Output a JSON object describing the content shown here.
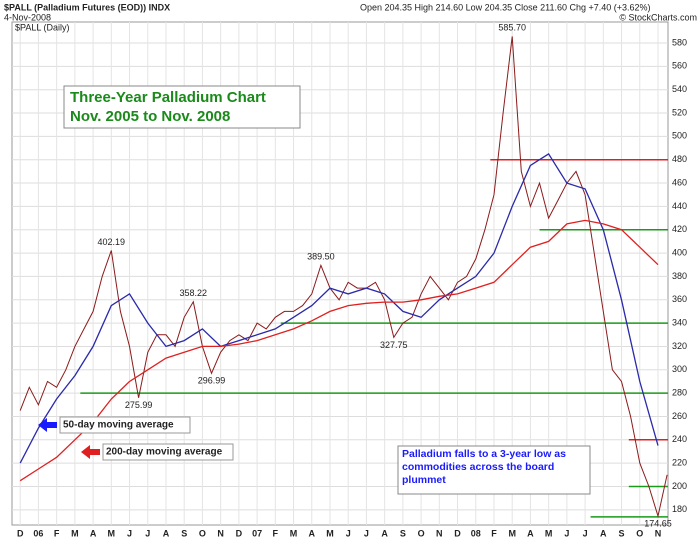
{
  "chart_data": {
    "type": "line",
    "symbol": "$PALL (Palladium Futures (EOD)) INDX",
    "date": "4-Nov-2008",
    "quote": "Open 204.35 High 214.60 Low 204.35 Close 211.60 Chg +7.40 (+3.62%)",
    "source": "© StockCharts.com",
    "panel_label": "$PALL (Daily)",
    "title": "Three-Year Palladium Chart",
    "subtitle": "Nov. 2005 to Nov. 2008",
    "legend_labels": [
      {
        "text": "50-day moving average",
        "color": "#1a1aff"
      },
      {
        "text": "200-day moving average",
        "color": "#e02020"
      }
    ],
    "annotation": "Palladium falls to a 3-year low as commodities across the board plummet",
    "xlim": [
      -0.45,
      35.55
    ],
    "ylim": [
      167,
      598
    ],
    "xticks": [
      {
        "value": 0,
        "label": "D"
      },
      {
        "value": 1,
        "label": "06"
      },
      {
        "value": 2,
        "label": "F"
      },
      {
        "value": 3,
        "label": "M"
      },
      {
        "value": 4,
        "label": "A"
      },
      {
        "value": 5,
        "label": "M"
      },
      {
        "value": 6,
        "label": "J"
      },
      {
        "value": 7,
        "label": "J"
      },
      {
        "value": 8,
        "label": "A"
      },
      {
        "value": 9,
        "label": "S"
      },
      {
        "value": 10,
        "label": "O"
      },
      {
        "value": 11,
        "label": "N"
      },
      {
        "value": 12,
        "label": "D"
      },
      {
        "value": 13,
        "label": "07"
      },
      {
        "value": 14,
        "label": "F"
      },
      {
        "value": 15,
        "label": "M"
      },
      {
        "value": 16,
        "label": "A"
      },
      {
        "value": 17,
        "label": "M"
      },
      {
        "value": 18,
        "label": "J"
      },
      {
        "value": 19,
        "label": "J"
      },
      {
        "value": 20,
        "label": "A"
      },
      {
        "value": 21,
        "label": "S"
      },
      {
        "value": 22,
        "label": "O"
      },
      {
        "value": 23,
        "label": "N"
      },
      {
        "value": 24,
        "label": "D"
      },
      {
        "value": 25,
        "label": "08"
      },
      {
        "value": 26,
        "label": "F"
      },
      {
        "value": 27,
        "label": "M"
      },
      {
        "value": 28,
        "label": "A"
      },
      {
        "value": 29,
        "label": "M"
      },
      {
        "value": 30,
        "label": "J"
      },
      {
        "value": 31,
        "label": "J"
      },
      {
        "value": 32,
        "label": "A"
      },
      {
        "value": 33,
        "label": "S"
      },
      {
        "value": 34,
        "label": "O"
      },
      {
        "value": 35,
        "label": "N"
      }
    ],
    "yticks": [
      180,
      200,
      220,
      240,
      260,
      280,
      300,
      320,
      340,
      360,
      380,
      400,
      420,
      440,
      460,
      480,
      500,
      520,
      540,
      560,
      580
    ],
    "grid": true,
    "series": [
      {
        "name": "$PALL",
        "color": "#8b1a1a",
        "x": [
          0,
          0.5,
          1,
          1.5,
          2,
          2.5,
          3,
          3.5,
          4,
          4.5,
          5,
          5.5,
          6,
          6.5,
          7,
          7.5,
          8,
          8.5,
          9,
          9.5,
          10,
          10.5,
          11,
          11.5,
          12,
          12.5,
          13,
          13.5,
          14,
          14.5,
          15,
          15.5,
          16,
          16.5,
          17,
          17.5,
          18,
          18.5,
          19,
          19.5,
          20,
          20.5,
          21,
          21.5,
          22,
          22.5,
          23,
          23.5,
          24,
          24.5,
          25,
          25.5,
          26,
          26.5,
          27,
          27.5,
          28,
          28.5,
          29,
          29.5,
          30,
          30.5,
          31,
          31.5,
          32,
          32.5,
          33,
          33.5,
          34,
          34.5,
          35,
          35.5
        ],
        "values": [
          265,
          285,
          270,
          290,
          285,
          300,
          320,
          335,
          350,
          380,
          402.19,
          350,
          320,
          275.99,
          315,
          330,
          330,
          320,
          345,
          358.22,
          320,
          296.99,
          315,
          325,
          330,
          325,
          340,
          335,
          345,
          350,
          350,
          355,
          365,
          389.5,
          370,
          360,
          375,
          370,
          370,
          375,
          360,
          327.75,
          340,
          345,
          365,
          380,
          370,
          360,
          375,
          380,
          395,
          420,
          450,
          520,
          585.7,
          470,
          440,
          460,
          430,
          445,
          460,
          470,
          450,
          400,
          350,
          300,
          290,
          260,
          220,
          200,
          174.65,
          210
        ],
        "value_labels": [
          null,
          null,
          null,
          null,
          null,
          null,
          null,
          null,
          null,
          null,
          "402.19",
          null,
          null,
          "275.99",
          null,
          null,
          null,
          null,
          null,
          "358.22",
          null,
          "296.99",
          null,
          null,
          null,
          null,
          null,
          null,
          null,
          null,
          null,
          null,
          null,
          "389.50",
          null,
          null,
          null,
          null,
          null,
          null,
          null,
          "327.75",
          null,
          null,
          null,
          null,
          null,
          null,
          null,
          null,
          null,
          null,
          null,
          null,
          "585.70",
          null,
          null,
          null,
          null,
          null,
          null,
          null,
          null,
          null,
          null,
          null,
          null,
          null,
          null,
          null,
          "174.65",
          null
        ]
      },
      {
        "name": "50-day moving average",
        "color": "#2a2aaa",
        "x": [
          0,
          1,
          2,
          3,
          4,
          5,
          6,
          7,
          8,
          9,
          10,
          11,
          12,
          13,
          14,
          15,
          16,
          17,
          18,
          19,
          20,
          21,
          22,
          23,
          24,
          25,
          26,
          27,
          28,
          29,
          30,
          31,
          32,
          33,
          34,
          35
        ],
        "values": [
          220,
          250,
          275,
          295,
          320,
          355,
          365,
          340,
          320,
          325,
          335,
          320,
          325,
          330,
          335,
          345,
          355,
          370,
          365,
          370,
          365,
          350,
          345,
          360,
          370,
          380,
          400,
          440,
          475,
          485,
          460,
          455,
          420,
          360,
          290,
          235
        ]
      },
      {
        "name": "200-day moving average",
        "color": "#e02020",
        "x": [
          0,
          1,
          2,
          3,
          4,
          5,
          6,
          7,
          8,
          9,
          10,
          11,
          12,
          13,
          14,
          15,
          16,
          17,
          18,
          19,
          20,
          21,
          22,
          23,
          24,
          25,
          26,
          27,
          28,
          29,
          30,
          31,
          32,
          33,
          34,
          35
        ],
        "values": [
          205,
          215,
          225,
          240,
          255,
          275,
          290,
          300,
          310,
          315,
          320,
          320,
          322,
          325,
          330,
          335,
          342,
          350,
          355,
          357,
          358,
          358,
          360,
          363,
          365,
          370,
          375,
          390,
          405,
          410,
          425,
          428,
          425,
          420,
          405,
          390
        ]
      }
    ],
    "levels": [
      {
        "value": 480,
        "x0": 25.8,
        "color": "#e02020"
      },
      {
        "value": 420,
        "x0": 28.5,
        "color": "#1a9a1a"
      },
      {
        "value": 340,
        "x0": 14.3,
        "color": "#1a9a1a"
      },
      {
        "value": 280,
        "x0": 3.3,
        "color": "#1a9a1a"
      },
      {
        "value": 240,
        "x0": 33.4,
        "color": "#e02020"
      },
      {
        "value": 200,
        "x0": 33.4,
        "color": "#1a9a1a"
      },
      {
        "value": 174,
        "x0": 31.3,
        "color": "#1a9a1a"
      }
    ]
  }
}
